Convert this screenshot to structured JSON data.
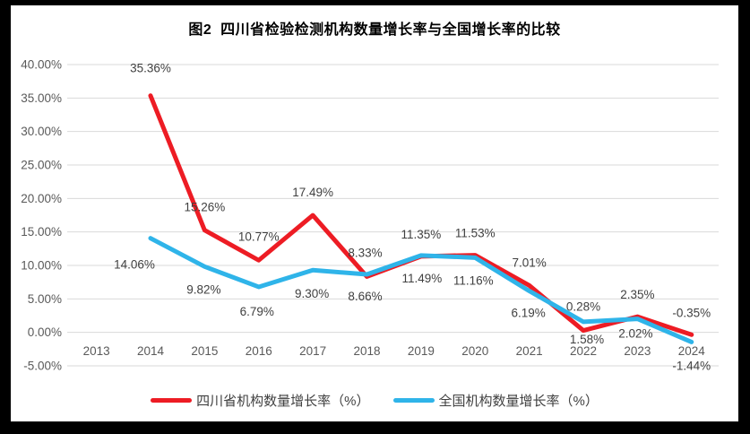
{
  "frame": {
    "background_color": "#000000",
    "card_color": "#ffffff"
  },
  "chart_data": {
    "type": "line",
    "title": "图2  四川省检验检测机构数量增长率与全国增长率的比较",
    "categories": [
      "2013",
      "2014",
      "2015",
      "2016",
      "2017",
      "2018",
      "2019",
      "2020",
      "2021",
      "2022",
      "2023",
      "2024"
    ],
    "series": [
      {
        "name": "四川省机构数量增长率（%）",
        "color": "#ed1c24",
        "values": [
          null,
          35.36,
          15.26,
          10.77,
          17.49,
          8.33,
          11.35,
          11.53,
          7.01,
          0.28,
          2.35,
          -0.35
        ],
        "labels": [
          null,
          "35.36%",
          "15.26%",
          "10.77%",
          "17.49%",
          "8.33%",
          "11.35%",
          "11.53%",
          "7.01%",
          "0.28%",
          "2.35%",
          "-0.35%"
        ],
        "label_position": "above",
        "label_dx": [
          0,
          0,
          0,
          0,
          0,
          -2,
          0,
          0,
          0,
          0,
          0,
          0
        ],
        "label_dy": [
          0,
          -26,
          -21,
          -22,
          -21,
          -22,
          -20,
          -20,
          -21,
          -22,
          -20,
          -20
        ]
      },
      {
        "name": "全国机构数量增长率（%）",
        "color": "#2fb4e9",
        "values": [
          null,
          14.06,
          9.82,
          6.79,
          9.3,
          8.66,
          11.49,
          11.16,
          6.19,
          1.58,
          2.02,
          -1.44
        ],
        "labels": [
          null,
          "14.06%",
          "9.82%",
          "6.79%",
          "9.30%",
          "8.66%",
          "11.49%",
          "11.16%",
          "6.19%",
          "1.58%",
          "2.02%",
          "-1.44%"
        ],
        "label_position": "below",
        "label_dx": [
          0,
          -18,
          -1,
          -2,
          -1,
          -2,
          1,
          -2,
          -1,
          4,
          -2,
          0
        ],
        "label_dy": [
          0,
          34,
          30,
          32,
          31,
          29,
          30,
          30,
          29,
          24,
          21,
          31
        ]
      }
    ],
    "ylim": [
      -5,
      40
    ],
    "ytick_step": 5,
    "ytick_labels": [
      "40.00%",
      "35.00%",
      "30.00%",
      "25.00%",
      "20.00%",
      "15.00%",
      "10.00%",
      "5.00%",
      "0.00%",
      "-5.00%"
    ],
    "grid": true,
    "legend_position": "bottom",
    "line_width": 5,
    "colors": {
      "gridline": "#d9d9d9",
      "axis_text": "#595959",
      "data_label": "#404040",
      "title_text": "#000000",
      "legend_text": "#404040"
    }
  }
}
